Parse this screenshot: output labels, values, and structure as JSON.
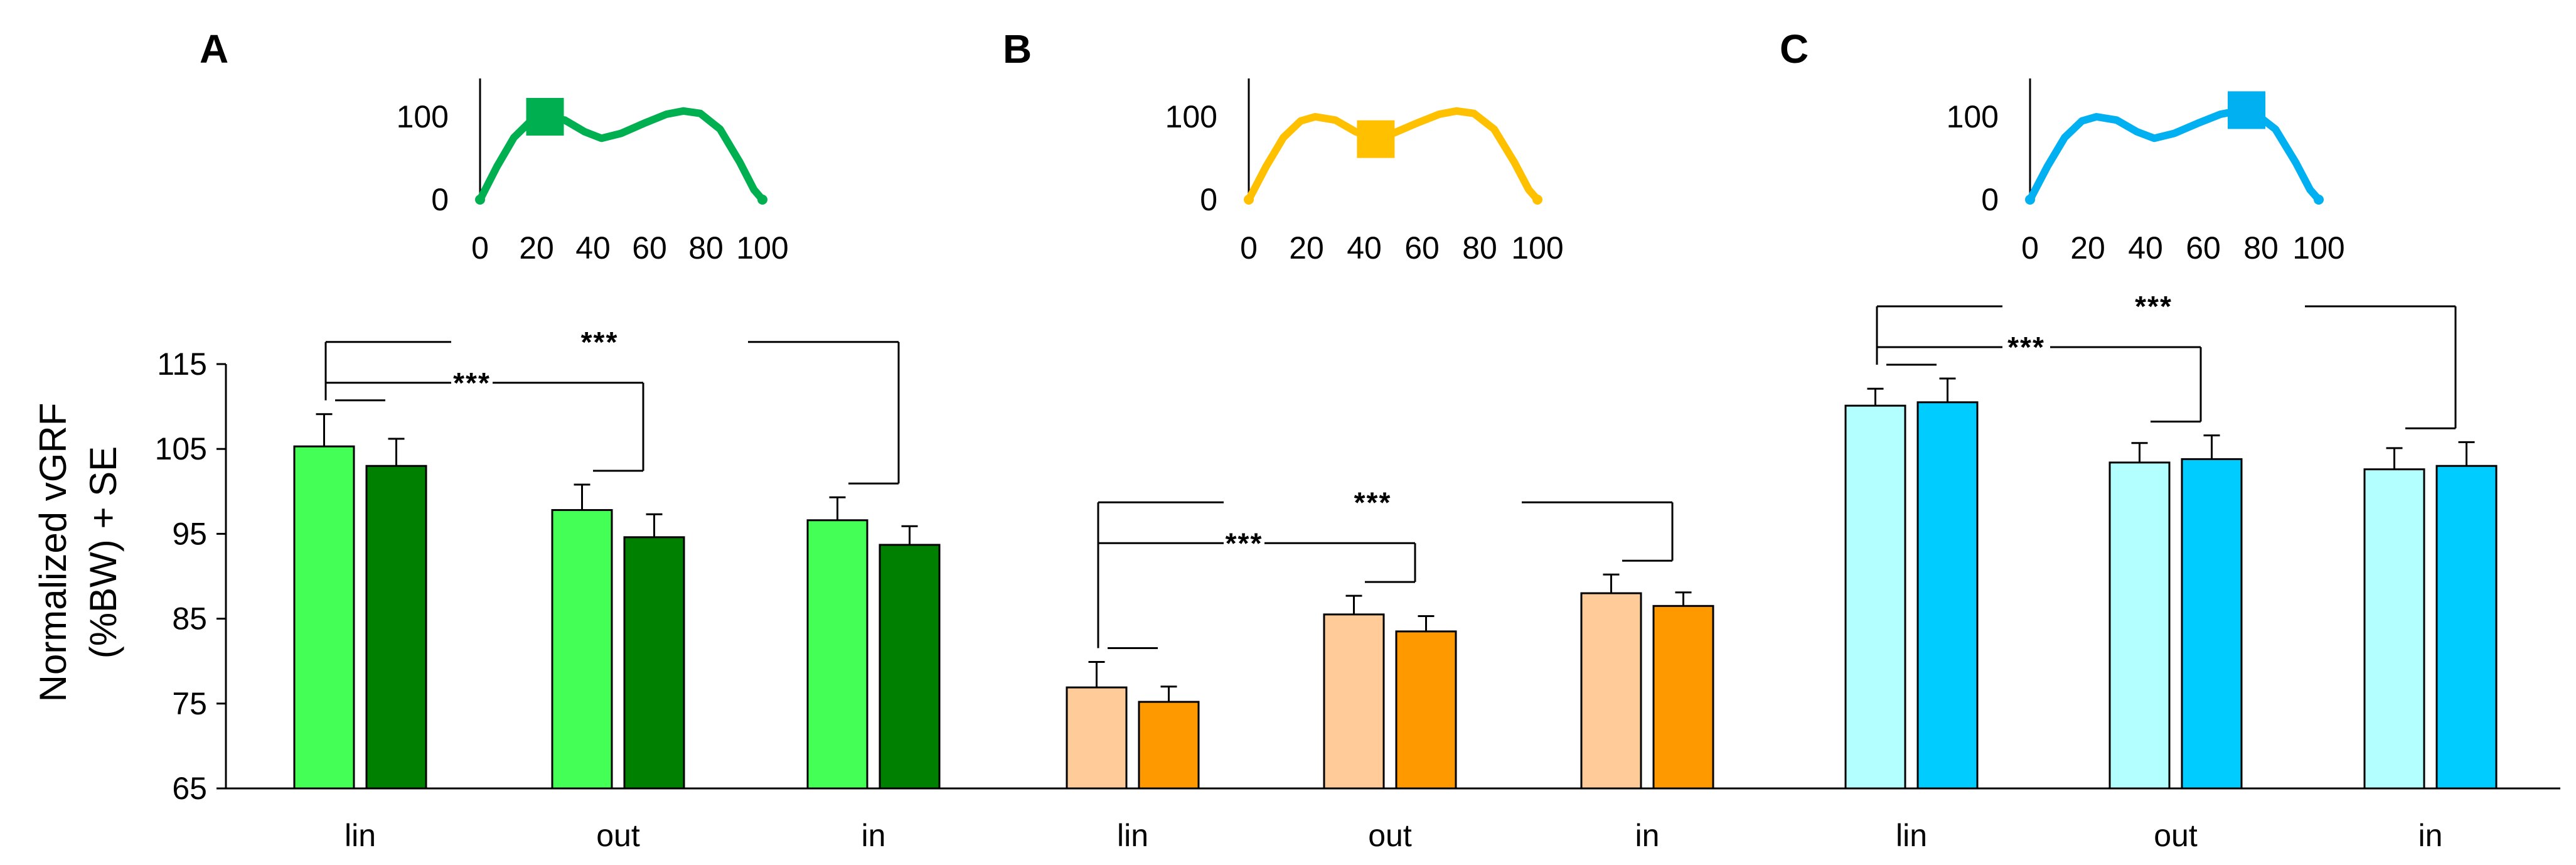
{
  "chart_data": {
    "type": "bar",
    "ylabel": "Normalized vGRF (%BW) + SE",
    "ylabel_lines": [
      "Normalized vGRF",
      "(%BW) + SE"
    ],
    "ylim": [
      65,
      115
    ],
    "yticks": [
      65,
      75,
      85,
      95,
      105,
      115
    ],
    "categories": [
      "lin",
      "out",
      "in"
    ],
    "panels": [
      {
        "label": "A",
        "colors": [
          "#44ff55",
          "#008000"
        ],
        "values": [
          [
            105.3,
            103.0
          ],
          [
            97.8,
            94.6
          ],
          [
            96.6,
            93.7
          ]
        ],
        "errors": [
          [
            3.8,
            3.2
          ],
          [
            3.0,
            2.7
          ],
          [
            2.7,
            2.2
          ]
        ],
        "significance": [
          {
            "from": "lin",
            "to": "out",
            "text": "***"
          },
          {
            "from": "lin",
            "to": "in",
            "text": "***"
          }
        ],
        "inset": {
          "color": "#00b050",
          "xticks": [
            0,
            20,
            40,
            60,
            80,
            100
          ],
          "yticks": [
            0,
            100
          ],
          "marker_x": 23,
          "marker_y": 100
        }
      },
      {
        "label": "B",
        "colors": [
          "#ffcc99",
          "#ff9900"
        ],
        "values": [
          [
            76.9,
            75.2
          ],
          [
            85.5,
            83.5
          ],
          [
            88.0,
            86.5
          ]
        ],
        "errors": [
          [
            3.0,
            1.8
          ],
          [
            2.2,
            1.8
          ],
          [
            2.2,
            1.6
          ]
        ],
        "significance": [
          {
            "from": "lin",
            "to": "out",
            "text": "***"
          },
          {
            "from": "lin",
            "to": "in",
            "text": "***"
          }
        ],
        "inset": {
          "color": "#ffc000",
          "xticks": [
            0,
            20,
            40,
            60,
            80,
            100
          ],
          "yticks": [
            0,
            100
          ],
          "marker_x": 44,
          "marker_y": 73
        }
      },
      {
        "label": "C",
        "colors": [
          "#b3ffff",
          "#00ccff"
        ],
        "values": [
          [
            110.1,
            110.5
          ],
          [
            103.4,
            103.8
          ],
          [
            102.6,
            103.0
          ]
        ],
        "errors": [
          [
            2.0,
            2.8
          ],
          [
            2.3,
            2.8
          ],
          [
            2.5,
            2.8
          ]
        ],
        "significance": [
          {
            "from": "lin",
            "to": "out",
            "text": "***"
          },
          {
            "from": "lin",
            "to": "in",
            "text": "***"
          }
        ],
        "inset": {
          "color": "#00b0f0",
          "xticks": [
            0,
            20,
            40,
            60,
            80,
            100
          ],
          "yticks": [
            0,
            100
          ],
          "marker_x": 75,
          "marker_y": 108
        }
      }
    ]
  }
}
